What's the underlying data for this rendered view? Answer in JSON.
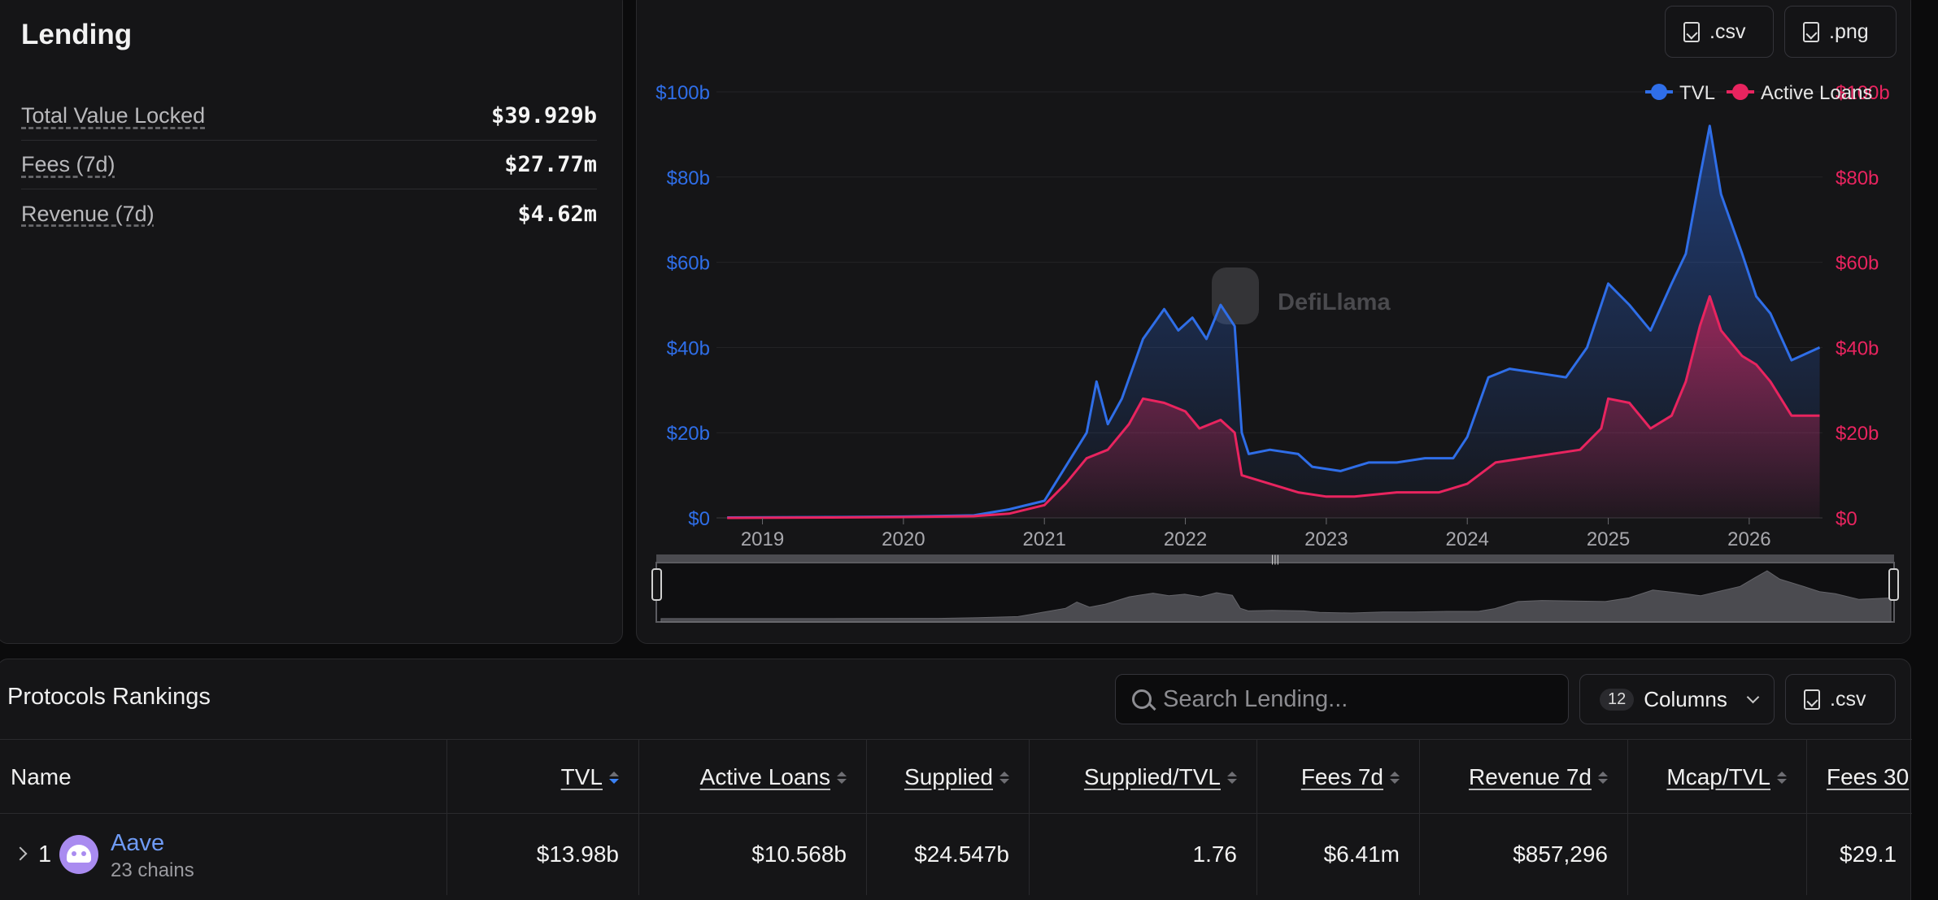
{
  "stats": {
    "title": "Lending",
    "rows": [
      {
        "label": "Total Value Locked",
        "value": "$39.929b"
      },
      {
        "label": "Fees (7d)",
        "value": "$27.77m"
      },
      {
        "label": "Revenue (7d)",
        "value": "$4.62m"
      }
    ]
  },
  "chart_toolbar": {
    "csv_label": ".csv",
    "png_label": ".png"
  },
  "chart_data": {
    "type": "area",
    "watermark": "DefiLlama",
    "legend_position": "top-right",
    "grid": true,
    "x_ticks": [
      "2019",
      "2020",
      "2021",
      "2022",
      "2023",
      "2024",
      "2025",
      "2026"
    ],
    "y_ticks_left": [
      "$0",
      "$20b",
      "$40b",
      "$60b",
      "$80b",
      "$100b"
    ],
    "y_ticks_right": [
      "$0",
      "$20b",
      "$40b",
      "$60b",
      "$80b",
      "$100b"
    ],
    "ylim": [
      0,
      100
    ],
    "colors": {
      "tvl": "#2f6ee8",
      "loans": "#e8245f"
    },
    "series": [
      {
        "name": "TVL",
        "axis": "left",
        "points": [
          [
            2018.75,
            0.1
          ],
          [
            2019.5,
            0.2
          ],
          [
            2020.0,
            0.3
          ],
          [
            2020.5,
            0.6
          ],
          [
            2020.75,
            2
          ],
          [
            2021.0,
            4
          ],
          [
            2021.15,
            12
          ],
          [
            2021.3,
            20
          ],
          [
            2021.37,
            32
          ],
          [
            2021.45,
            22
          ],
          [
            2021.55,
            28
          ],
          [
            2021.7,
            42
          ],
          [
            2021.85,
            49
          ],
          [
            2021.95,
            44
          ],
          [
            2022.05,
            47
          ],
          [
            2022.15,
            42
          ],
          [
            2022.25,
            50
          ],
          [
            2022.35,
            45
          ],
          [
            2022.4,
            20
          ],
          [
            2022.45,
            15
          ],
          [
            2022.6,
            16
          ],
          [
            2022.8,
            15
          ],
          [
            2022.9,
            12
          ],
          [
            2023.1,
            11
          ],
          [
            2023.3,
            13
          ],
          [
            2023.5,
            13
          ],
          [
            2023.7,
            14
          ],
          [
            2023.9,
            14
          ],
          [
            2024.0,
            19
          ],
          [
            2024.15,
            33
          ],
          [
            2024.3,
            35
          ],
          [
            2024.5,
            34
          ],
          [
            2024.7,
            33
          ],
          [
            2024.85,
            40
          ],
          [
            2025.0,
            55
          ],
          [
            2025.15,
            50
          ],
          [
            2025.3,
            44
          ],
          [
            2025.45,
            55
          ],
          [
            2025.55,
            62
          ],
          [
            2025.65,
            80
          ],
          [
            2025.72,
            92
          ],
          [
            2025.8,
            76
          ],
          [
            2025.95,
            62
          ],
          [
            2026.05,
            52
          ],
          [
            2026.15,
            48
          ],
          [
            2026.3,
            37
          ],
          [
            2026.5,
            40
          ]
        ]
      },
      {
        "name": "Active Loans",
        "axis": "right",
        "points": [
          [
            2018.75,
            0
          ],
          [
            2019.5,
            0.1
          ],
          [
            2020.0,
            0.2
          ],
          [
            2020.5,
            0.4
          ],
          [
            2020.75,
            1
          ],
          [
            2021.0,
            3
          ],
          [
            2021.15,
            8
          ],
          [
            2021.3,
            14
          ],
          [
            2021.45,
            16
          ],
          [
            2021.6,
            22
          ],
          [
            2021.7,
            28
          ],
          [
            2021.85,
            27
          ],
          [
            2022.0,
            25
          ],
          [
            2022.1,
            21
          ],
          [
            2022.25,
            23
          ],
          [
            2022.35,
            20
          ],
          [
            2022.4,
            10
          ],
          [
            2022.6,
            8
          ],
          [
            2022.8,
            6
          ],
          [
            2023.0,
            5
          ],
          [
            2023.2,
            5
          ],
          [
            2023.5,
            6
          ],
          [
            2023.8,
            6
          ],
          [
            2024.0,
            8
          ],
          [
            2024.2,
            13
          ],
          [
            2024.4,
            14
          ],
          [
            2024.6,
            15
          ],
          [
            2024.8,
            16
          ],
          [
            2024.95,
            21
          ],
          [
            2025.0,
            28
          ],
          [
            2025.15,
            27
          ],
          [
            2025.3,
            21
          ],
          [
            2025.45,
            24
          ],
          [
            2025.55,
            32
          ],
          [
            2025.65,
            45
          ],
          [
            2025.72,
            52
          ],
          [
            2025.8,
            44
          ],
          [
            2025.95,
            38
          ],
          [
            2026.05,
            36
          ],
          [
            2026.15,
            32
          ],
          [
            2026.3,
            24
          ],
          [
            2026.5,
            24
          ]
        ]
      }
    ]
  },
  "rankings": {
    "title": "Protocols Rankings",
    "search_placeholder": "Search Lending...",
    "columns_count": "12",
    "columns_label": "Columns",
    "csv_label": ".csv",
    "headers": [
      "Name",
      "TVL",
      "Active Loans",
      "Supplied",
      "Supplied/TVL",
      "Fees 7d",
      "Revenue 7d",
      "Mcap/TVL",
      "Fees 30"
    ],
    "rows": [
      {
        "rank": "1",
        "name": "Aave",
        "chains": "23 chains",
        "tvl": "$13.98b",
        "active_loans": "$10.568b",
        "supplied": "$24.547b",
        "supplied_tvl": "1.76",
        "fees_7d": "$6.41m",
        "revenue_7d": "$857,296",
        "mcap_tvl": "",
        "fees_30d": "$29.1"
      }
    ]
  }
}
